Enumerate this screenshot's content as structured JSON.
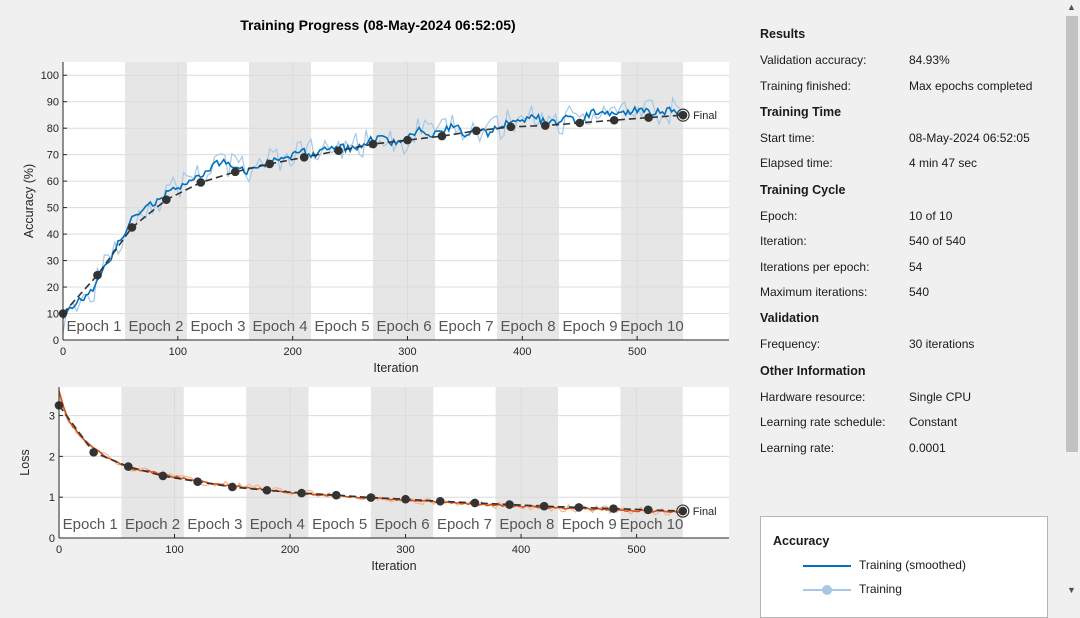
{
  "chart_data": [
    {
      "type": "line",
      "title": "Training Progress (08-May-2024 06:52:05)",
      "xlabel": "Iteration",
      "ylabel": "Accuracy (%)",
      "xlim": [
        0,
        580
      ],
      "ylim": [
        0,
        105
      ],
      "x_ticks": [
        0,
        100,
        200,
        300,
        400,
        500
      ],
      "y_ticks": [
        0,
        10,
        20,
        30,
        40,
        50,
        60,
        70,
        80,
        90,
        100
      ],
      "epoch_labels": [
        "Epoch 1",
        "Epoch 2",
        "Epoch 3",
        "Epoch 4",
        "Epoch 5",
        "Epoch 6",
        "Epoch 7",
        "Epoch 8",
        "Epoch 9",
        "Epoch 10"
      ],
      "iterations_per_epoch": 54,
      "final_label": "Final",
      "series": [
        {
          "name": "Training (smoothed)",
          "color": "#0072bd",
          "x": [
            0,
            10,
            20,
            30,
            40,
            50,
            60,
            70,
            80,
            90,
            100,
            110,
            120,
            130,
            140,
            150,
            160,
            170,
            180,
            190,
            200,
            210,
            220,
            230,
            240,
            250,
            260,
            270,
            280,
            290,
            300,
            310,
            320,
            330,
            340,
            350,
            360,
            370,
            380,
            390,
            400,
            410,
            420,
            430,
            440,
            450,
            460,
            470,
            480,
            490,
            500,
            510,
            520,
            530,
            540
          ],
          "y": [
            8,
            14,
            16,
            22,
            30,
            38,
            46,
            49,
            52,
            55,
            58,
            60,
            62,
            66,
            67,
            65,
            64,
            66,
            67,
            68,
            70,
            71,
            70,
            72,
            73,
            72,
            74,
            76,
            76,
            74,
            76,
            79,
            77,
            79,
            81,
            78,
            80,
            78,
            81,
            82,
            82,
            85,
            82,
            82,
            84,
            82,
            86,
            85,
            86,
            85,
            87,
            86,
            86,
            87,
            86
          ]
        },
        {
          "name": "Training",
          "color": "#a6c8e6"
        },
        {
          "name": "Validation",
          "color": "#000000",
          "marker": "circle",
          "x": [
            0,
            30,
            60,
            90,
            120,
            150,
            180,
            210,
            240,
            270,
            300,
            330,
            360,
            390,
            420,
            450,
            480,
            510,
            540
          ],
          "y": [
            10,
            24.5,
            42.5,
            53,
            59.5,
            63.5,
            66.5,
            69,
            71.5,
            74,
            75.5,
            77,
            79,
            80.5,
            81,
            82,
            83,
            84,
            84.93
          ]
        }
      ]
    },
    {
      "type": "line",
      "xlabel": "Iteration",
      "ylabel": "Loss",
      "xlim": [
        0,
        580
      ],
      "ylim": [
        0,
        3.7
      ],
      "x_ticks": [
        0,
        100,
        200,
        300,
        400,
        500
      ],
      "y_ticks": [
        0,
        1,
        2,
        3
      ],
      "epoch_labels": [
        "Epoch 1",
        "Epoch 2",
        "Epoch 3",
        "Epoch 4",
        "Epoch 5",
        "Epoch 6",
        "Epoch 7",
        "Epoch 8",
        "Epoch 9",
        "Epoch 10"
      ],
      "iterations_per_epoch": 54,
      "final_label": "Final",
      "series": [
        {
          "name": "Training (smoothed)",
          "color": "#d95319",
          "x": [
            0,
            5,
            10,
            20,
            30,
            40,
            50,
            60,
            80,
            100,
            120,
            140,
            160,
            180,
            200,
            220,
            240,
            260,
            280,
            300,
            320,
            340,
            360,
            380,
            400,
            420,
            440,
            460,
            480,
            500,
            520,
            540
          ],
          "y": [
            3.6,
            3.1,
            2.8,
            2.45,
            2.2,
            2.0,
            1.85,
            1.72,
            1.62,
            1.5,
            1.4,
            1.3,
            1.25,
            1.18,
            1.12,
            1.07,
            1.03,
            1.0,
            0.97,
            0.93,
            0.9,
            0.87,
            0.83,
            0.8,
            0.78,
            0.75,
            0.73,
            0.71,
            0.69,
            0.67,
            0.66,
            0.64
          ]
        },
        {
          "name": "Training",
          "color": "#f2b796"
        },
        {
          "name": "Validation",
          "color": "#000000",
          "marker": "circle",
          "x": [
            0,
            30,
            60,
            90,
            120,
            150,
            180,
            210,
            240,
            270,
            300,
            330,
            360,
            390,
            420,
            450,
            480,
            510,
            540
          ],
          "y": [
            3.25,
            2.1,
            1.75,
            1.52,
            1.38,
            1.25,
            1.17,
            1.1,
            1.05,
            0.99,
            0.95,
            0.9,
            0.86,
            0.82,
            0.78,
            0.75,
            0.72,
            0.69,
            0.66
          ]
        }
      ]
    }
  ],
  "results": {
    "heading": "Results",
    "validation_accuracy_label": "Validation accuracy:",
    "validation_accuracy": "84.93%",
    "training_finished_label": "Training finished:",
    "training_finished": "Max epochs completed"
  },
  "training_time": {
    "heading": "Training Time",
    "start_time_label": "Start time:",
    "start_time": "08-May-2024 06:52:05",
    "elapsed_time_label": "Elapsed time:",
    "elapsed_time": "4 min 47 sec"
  },
  "training_cycle": {
    "heading": "Training Cycle",
    "epoch_label": "Epoch:",
    "epoch": "10 of 10",
    "iteration_label": "Iteration:",
    "iteration": "540 of 540",
    "iterations_per_epoch_label": "Iterations per epoch:",
    "iterations_per_epoch": "54",
    "max_iterations_label": "Maximum iterations:",
    "max_iterations": "540"
  },
  "validation": {
    "heading": "Validation",
    "frequency_label": "Frequency:",
    "frequency": "30 iterations"
  },
  "other_info": {
    "heading": "Other Information",
    "hardware_label": "Hardware resource:",
    "hardware": "Single CPU",
    "lr_schedule_label": "Learning rate schedule:",
    "lr_schedule": "Constant",
    "lr_label": "Learning rate:",
    "lr": "0.0001"
  },
  "legend": {
    "title": "Accuracy",
    "items": [
      {
        "label": "Training (smoothed)",
        "color": "#0072bd"
      },
      {
        "label": "Training",
        "color": "#a6c8e6"
      }
    ]
  }
}
